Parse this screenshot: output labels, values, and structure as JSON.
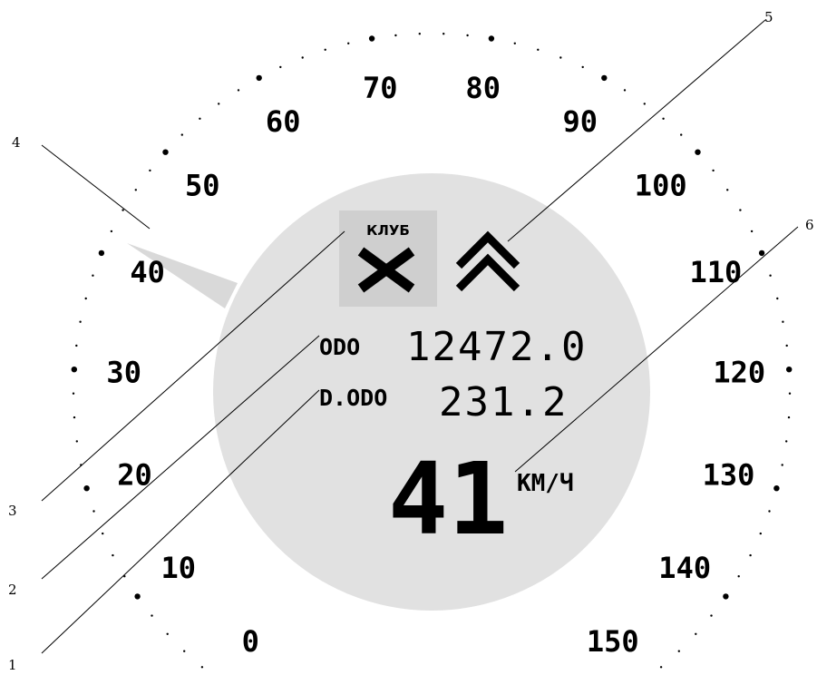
{
  "scale": {
    "labels": [
      "0",
      "10",
      "20",
      "30",
      "40",
      "50",
      "60",
      "70",
      "80",
      "90",
      "100",
      "110",
      "120",
      "130",
      "140",
      "150"
    ]
  },
  "display": {
    "clutch_label": "КЛУБ",
    "odo_label": "ODO",
    "odo_value": "12472.0",
    "trip_label": "D.ODO",
    "trip_value": "231.2",
    "speed_value": "41",
    "speed_unit": "КМ/Ч"
  },
  "callouts": [
    "1",
    "2",
    "3",
    "4",
    "5",
    "6"
  ],
  "colors": {
    "display_background": "#e1e1e1",
    "clutch_panel": "#cfcfcf",
    "ink": "#000000"
  },
  "icons": {
    "clutch": "x-mark-icon",
    "upshift": "double-chevron-up-icon"
  }
}
